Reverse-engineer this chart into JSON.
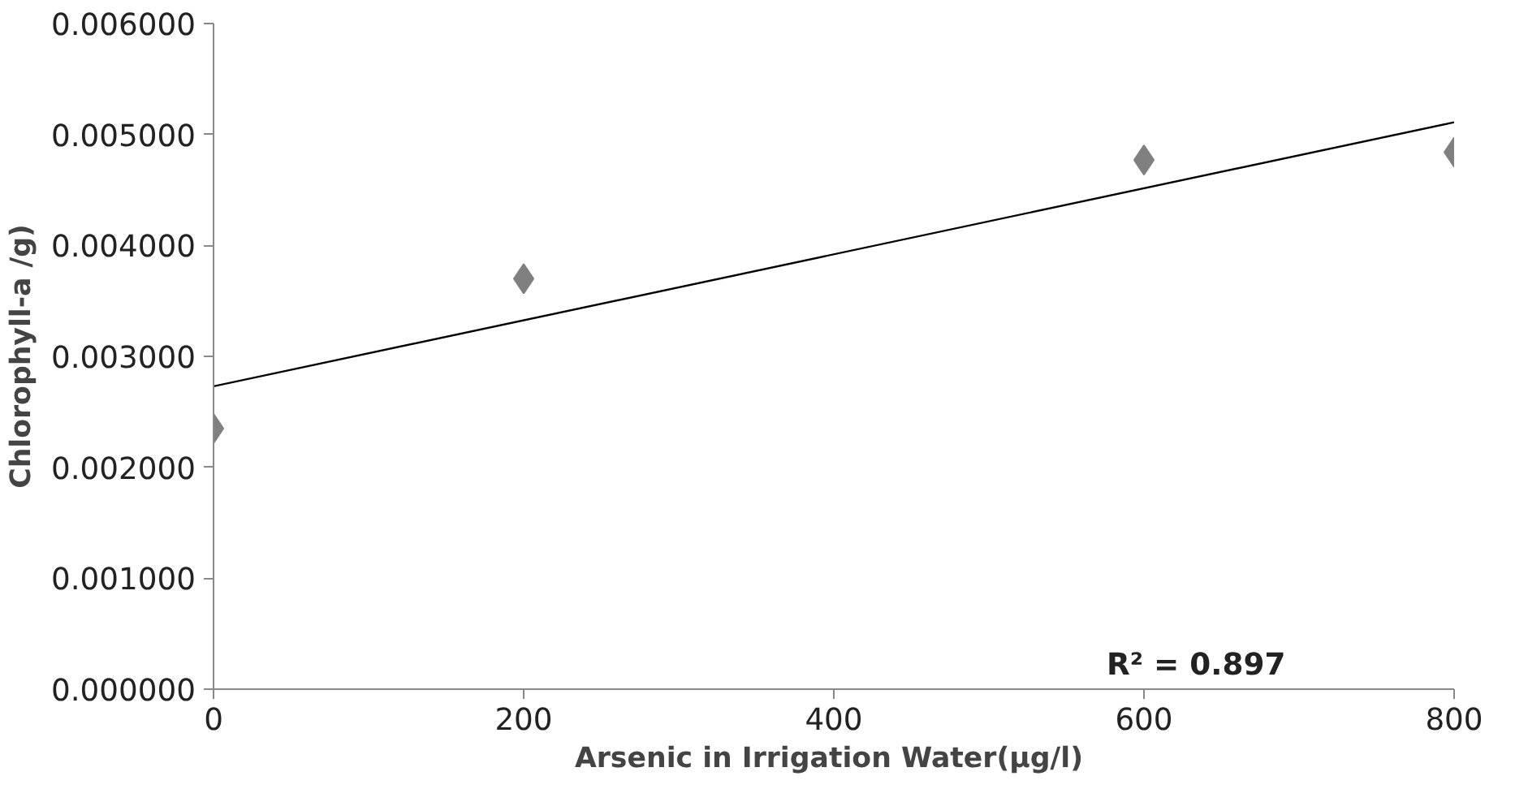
{
  "chart_data": {
    "type": "scatter",
    "xlabel": "Arsenic  in Irrigation Water(µg/l)",
    "ylabel": "Chlorophyll-a /g)",
    "x": [
      0,
      200,
      600,
      800
    ],
    "series": [
      {
        "color": "#808080",
        "values": [
          0.00235,
          0.0037,
          0.00477,
          0.00484
        ],
        "marker": "diamond"
      },
      {
        "type": "line",
        "color": "#000000",
        "x": [
          0,
          800
        ],
        "values": [
          0.00273,
          0.00511
        ],
        "marker": "none",
        "line_style": "solid"
      }
    ],
    "xlim": [
      0,
      800
    ],
    "xticks": [
      0,
      200,
      400,
      600,
      800
    ],
    "ylim": [
      0,
      0.006
    ],
    "yticks": [
      {
        "value": 0,
        "label": "0.000000"
      },
      {
        "value": 0.001,
        "label": "0.001000"
      },
      {
        "value": 0.002,
        "label": "0.002000"
      },
      {
        "value": 0.003,
        "label": "0.003000"
      },
      {
        "value": 0.004,
        "label": "0.004000"
      },
      {
        "value": 0.005,
        "label": "0.005000"
      },
      {
        "value": 0.006,
        "label": "0.006000"
      }
    ],
    "annotations": [
      "R² = 0.897"
    ],
    "grid": false
  }
}
